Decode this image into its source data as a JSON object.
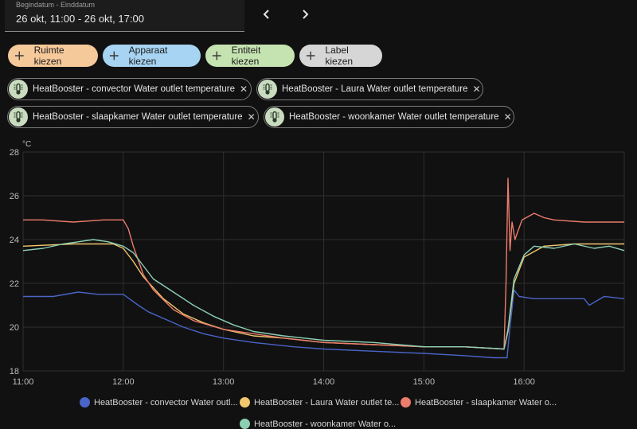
{
  "date_range": {
    "label": "Begindatum - Einddatum",
    "value": "26 okt, 11:00 - 26 okt, 17:00"
  },
  "nav": {
    "prev_icon": "chevron-left-icon",
    "next_icon": "chevron-right-icon"
  },
  "filters": [
    {
      "label": "Ruimte kiezen",
      "color": "#f6c99a"
    },
    {
      "label": "Apparaat kiezen",
      "color": "#a6d4f2"
    },
    {
      "label": "Entiteit kiezen",
      "color": "#c5e2b1"
    },
    {
      "label": "Label kiezen",
      "color": "#d6d6d6"
    }
  ],
  "entities": [
    "HeatBooster - convector Water outlet temperature",
    "HeatBooster - Laura Water outlet temperature",
    "HeatBooster - slaapkamer Water outlet temperature",
    "HeatBooster - woonkamer Water outlet temperature"
  ],
  "legend": [
    {
      "label": "HeatBooster - convector Water outl...",
      "color": "#4a64c8"
    },
    {
      "label": "HeatBooster - Laura Water outlet te...",
      "color": "#f1c76e"
    },
    {
      "label": "HeatBooster - slaapkamer Water o...",
      "color": "#ec7c6c"
    },
    {
      "label": "HeatBooster - woonkamer Water o...",
      "color": "#8cd0b4"
    }
  ],
  "chart_data": {
    "type": "line",
    "ylabel": "°C",
    "ylim": [
      18,
      28
    ],
    "xlim": [
      11.0,
      17.0
    ],
    "y_ticks": [
      "18",
      "20",
      "22",
      "24",
      "26",
      "28"
    ],
    "x_ticks": [
      "11:00",
      "12:00",
      "13:00",
      "14:00",
      "15:00",
      "16:00"
    ],
    "series": [
      {
        "name": "HeatBooster - convector Water outlet temperature",
        "color": "#4a64c8",
        "x": [
          11.0,
          11.3,
          11.55,
          11.75,
          12.0,
          12.15,
          12.25,
          12.4,
          12.6,
          12.8,
          13.0,
          13.3,
          13.7,
          14.0,
          14.5,
          15.0,
          15.4,
          15.7,
          15.83,
          15.86,
          15.9,
          15.95,
          16.1,
          16.4,
          16.6,
          16.65,
          16.8,
          17.0
        ],
        "y": [
          21.4,
          21.4,
          21.6,
          21.5,
          21.5,
          21.0,
          20.7,
          20.4,
          20.0,
          19.7,
          19.5,
          19.3,
          19.1,
          19.0,
          18.9,
          18.8,
          18.7,
          18.6,
          18.6,
          20.0,
          21.7,
          21.4,
          21.3,
          21.3,
          21.3,
          21.0,
          21.4,
          21.3
        ]
      },
      {
        "name": "HeatBooster - Laura Water outlet temperature",
        "color": "#f1c76e",
        "x": [
          11.0,
          11.5,
          11.9,
          12.0,
          12.1,
          12.2,
          12.4,
          12.6,
          12.8,
          13.0,
          13.3,
          13.6,
          14.0,
          14.5,
          15.0,
          15.4,
          15.8,
          15.84,
          15.9,
          16.0,
          16.2,
          16.5,
          16.8,
          17.0
        ],
        "y": [
          23.7,
          23.8,
          23.8,
          23.6,
          23.0,
          22.3,
          21.3,
          20.6,
          20.2,
          19.9,
          19.6,
          19.5,
          19.3,
          19.2,
          19.1,
          19.1,
          19.0,
          19.8,
          22.0,
          23.2,
          23.7,
          23.8,
          23.8,
          23.8
        ]
      },
      {
        "name": "HeatBooster - slaapkamer Water outlet temperature",
        "color": "#ec7c6c",
        "x": [
          11.0,
          11.2,
          11.5,
          11.8,
          12.0,
          12.05,
          12.1,
          12.2,
          12.3,
          12.5,
          12.7,
          13.0,
          13.3,
          13.6,
          14.0,
          14.5,
          15.0,
          15.4,
          15.8,
          15.82,
          15.84,
          15.86,
          15.88,
          15.91,
          15.94,
          15.98,
          16.1,
          16.2,
          16.3,
          16.6,
          17.0
        ],
        "y": [
          24.9,
          24.9,
          24.8,
          24.9,
          24.9,
          24.5,
          23.7,
          22.4,
          21.7,
          20.8,
          20.3,
          19.9,
          19.7,
          19.5,
          19.3,
          19.2,
          19.1,
          19.1,
          19.0,
          22.0,
          26.8,
          23.5,
          24.8,
          24.0,
          24.4,
          24.9,
          25.2,
          25.0,
          24.9,
          24.8,
          24.8
        ]
      },
      {
        "name": "HeatBooster - woonkamer Water outlet temperature",
        "color": "#8cd0b4",
        "x": [
          11.0,
          11.2,
          11.4,
          11.55,
          11.7,
          11.85,
          12.0,
          12.1,
          12.2,
          12.3,
          12.5,
          12.7,
          12.9,
          13.1,
          13.3,
          13.6,
          14.0,
          14.5,
          15.0,
          15.4,
          15.8,
          15.84,
          15.9,
          16.0,
          16.1,
          16.3,
          16.5,
          16.7,
          16.85,
          17.0
        ],
        "y": [
          23.5,
          23.6,
          23.8,
          23.9,
          24.0,
          23.9,
          23.7,
          23.4,
          22.8,
          22.2,
          21.6,
          21.0,
          20.5,
          20.1,
          19.8,
          19.6,
          19.4,
          19.3,
          19.1,
          19.1,
          19.0,
          19.9,
          22.2,
          23.3,
          23.7,
          23.6,
          23.8,
          23.6,
          23.7,
          23.5
        ]
      }
    ]
  }
}
